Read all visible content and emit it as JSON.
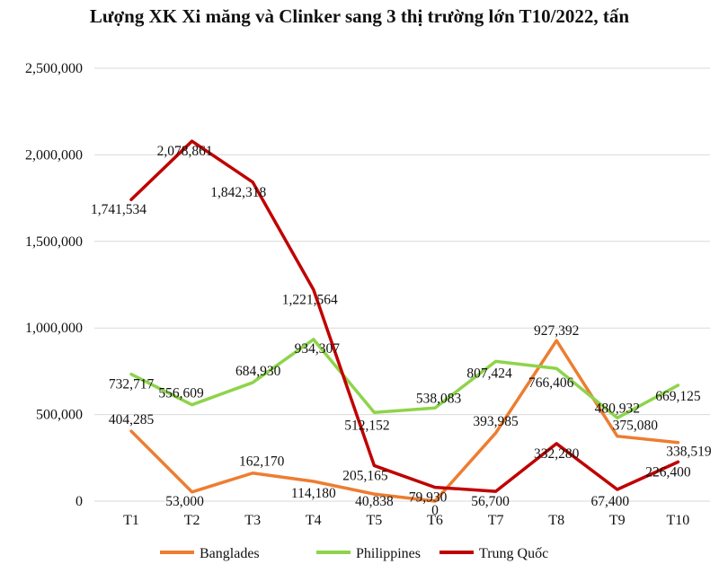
{
  "chart_data": {
    "type": "line",
    "title": "Lượng XK Xi măng và Clinker sang 3 thị trường lớn T10/2022, tấn",
    "xlabel": "",
    "ylabel": "",
    "categories": [
      "T1",
      "T2",
      "T3",
      "T4",
      "T5",
      "T6",
      "T7",
      "T8",
      "T9",
      "T10"
    ],
    "ylim": [
      0,
      2500000
    ],
    "yticks": [
      0,
      500000,
      1000000,
      1500000,
      2000000,
      2500000
    ],
    "ytick_labels": [
      "0",
      "500,000",
      "1,000,000",
      "1,500,000",
      "2,000,000",
      "2,500,000"
    ],
    "grid": "horizontal",
    "legend_position": "bottom",
    "series": [
      {
        "name": "Banglades",
        "color": "#ED7D31",
        "values": [
          404285,
          53000,
          162170,
          114180,
          40838,
          0,
          393985,
          927392,
          375080,
          338519
        ],
        "labels": [
          "404,285",
          "53,000",
          "162,170",
          "114,180",
          "40,838",
          "0",
          "393,985",
          "927,392",
          "375,080",
          "338,519"
        ]
      },
      {
        "name": "Philippines",
        "color": "#8ED44A",
        "values": [
          732717,
          556609,
          684930,
          934307,
          512152,
          538083,
          807424,
          766406,
          480932,
          669125
        ],
        "labels": [
          "732,717",
          "556,609",
          "684,930",
          "934,307",
          "512,152",
          "538,083",
          "807,424",
          "766,406",
          "480,932",
          "669,125"
        ]
      },
      {
        "name": "Trung Quốc",
        "color": "#C00000",
        "values": [
          1741534,
          2078861,
          1842318,
          1221564,
          205165,
          79930,
          56700,
          332280,
          67400,
          226400
        ],
        "labels": [
          "1,741,534",
          "2,078,861",
          "1,842,318",
          "1,221,564",
          "205,165",
          "79,930",
          "56,700",
          "332,280",
          "67,400",
          "226,400"
        ]
      }
    ]
  }
}
